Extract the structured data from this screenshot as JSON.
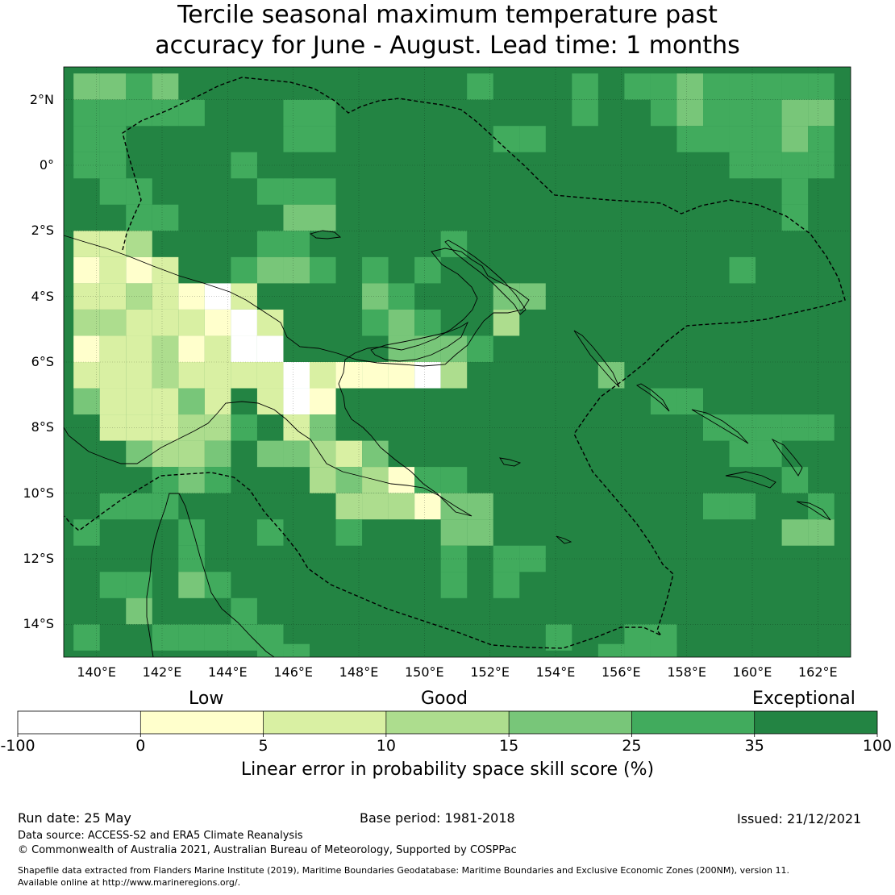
{
  "title_line1": "Tercile seasonal maximum temperature past",
  "title_line2": "accuracy for June - August. Lead time: 1 months",
  "map": {
    "lon_min": 139,
    "lon_max": 163,
    "lat_min": -15,
    "lat_max": 3,
    "lat_ticks": [
      "2°N",
      "0°",
      "2°S",
      "4°S",
      "6°S",
      "8°S",
      "10°S",
      "12°S",
      "14°S"
    ],
    "lon_ticks": [
      "140°E",
      "142°E",
      "144°E",
      "146°E",
      "148°E",
      "150°E",
      "152°E",
      "154°E",
      "156°E",
      "158°E",
      "160°E",
      "162°E"
    ],
    "grid_on": true,
    "background_category": 6,
    "skill_patches": [
      {
        "lon": 139.7,
        "lat": 2.4,
        "c": 4
      },
      {
        "lon": 140.5,
        "lat": 2.4,
        "c": 4
      },
      {
        "lon": 141.3,
        "lat": 2.4,
        "c": 5
      },
      {
        "lon": 142.1,
        "lat": 2.4,
        "c": 4
      },
      {
        "lon": 139.7,
        "lat": 1.6,
        "c": 5
      },
      {
        "lon": 140.5,
        "lat": 1.6,
        "c": 5
      },
      {
        "lon": 141.3,
        "lat": 1.6,
        "c": 5
      },
      {
        "lon": 142.1,
        "lat": 1.6,
        "c": 5
      },
      {
        "lon": 142.9,
        "lat": 1.6,
        "c": 5
      },
      {
        "lon": 139.7,
        "lat": 0.8,
        "c": 5
      },
      {
        "lon": 140.5,
        "lat": 0.8,
        "c": 5
      },
      {
        "lon": 139.7,
        "lat": 0.0,
        "c": 5
      },
      {
        "lon": 140.5,
        "lat": 0.0,
        "c": 5
      },
      {
        "lon": 140.5,
        "lat": -0.8,
        "c": 5
      },
      {
        "lon": 141.3,
        "lat": -0.8,
        "c": 5
      },
      {
        "lon": 141.3,
        "lat": -1.6,
        "c": 5
      },
      {
        "lon": 142.1,
        "lat": -1.6,
        "c": 5
      },
      {
        "lon": 144.5,
        "lat": 0.0,
        "c": 5
      },
      {
        "lon": 145.3,
        "lat": -0.8,
        "c": 5
      },
      {
        "lon": 146.1,
        "lat": -0.8,
        "c": 5
      },
      {
        "lon": 146.9,
        "lat": -0.8,
        "c": 5
      },
      {
        "lon": 146.1,
        "lat": 0.8,
        "c": 5
      },
      {
        "lon": 146.9,
        "lat": 0.8,
        "c": 5
      },
      {
        "lon": 146.9,
        "lat": 1.6,
        "c": 5
      },
      {
        "lon": 146.1,
        "lat": 1.6,
        "c": 5
      },
      {
        "lon": 146.1,
        "lat": -1.6,
        "c": 4
      },
      {
        "lon": 146.9,
        "lat": -1.6,
        "c": 4
      },
      {
        "lon": 146.1,
        "lat": -2.4,
        "c": 5
      },
      {
        "lon": 145.3,
        "lat": -2.4,
        "c": 5
      },
      {
        "lon": 144.5,
        "lat": -3.2,
        "c": 5
      },
      {
        "lon": 145.3,
        "lat": -3.2,
        "c": 4
      },
      {
        "lon": 146.1,
        "lat": -3.2,
        "c": 4
      },
      {
        "lon": 146.9,
        "lat": -3.2,
        "c": 5
      },
      {
        "lon": 148.5,
        "lat": -3.2,
        "c": 5
      },
      {
        "lon": 148.5,
        "lat": -4.0,
        "c": 4
      },
      {
        "lon": 149.3,
        "lat": -4.0,
        "c": 5
      },
      {
        "lon": 149.3,
        "lat": -4.8,
        "c": 4
      },
      {
        "lon": 150.1,
        "lat": -4.8,
        "c": 5
      },
      {
        "lon": 148.5,
        "lat": -4.8,
        "c": 5
      },
      {
        "lon": 149.3,
        "lat": -5.6,
        "c": 4
      },
      {
        "lon": 150.1,
        "lat": -5.6,
        "c": 4
      },
      {
        "lon": 150.9,
        "lat": -5.6,
        "c": 4
      },
      {
        "lon": 151.7,
        "lat": -5.6,
        "c": 5
      },
      {
        "lon": 152.5,
        "lat": -4.0,
        "c": 4
      },
      {
        "lon": 153.3,
        "lat": -4.0,
        "c": 4
      },
      {
        "lon": 152.5,
        "lat": -4.8,
        "c": 3
      },
      {
        "lon": 150.1,
        "lat": -3.2,
        "c": 5
      },
      {
        "lon": 150.9,
        "lat": -2.4,
        "c": 5
      },
      {
        "lon": 139.7,
        "lat": -2.4,
        "c": 2
      },
      {
        "lon": 140.5,
        "lat": -2.4,
        "c": 2
      },
      {
        "lon": 141.3,
        "lat": -2.4,
        "c": 3
      },
      {
        "lon": 139.7,
        "lat": -3.2,
        "c": 1
      },
      {
        "lon": 140.5,
        "lat": -3.2,
        "c": 2
      },
      {
        "lon": 141.3,
        "lat": -3.2,
        "c": 1
      },
      {
        "lon": 142.1,
        "lat": -3.2,
        "c": 2
      },
      {
        "lon": 139.7,
        "lat": -4.0,
        "c": 2
      },
      {
        "lon": 140.5,
        "lat": -4.0,
        "c": 2
      },
      {
        "lon": 141.3,
        "lat": -4.0,
        "c": 3
      },
      {
        "lon": 142.1,
        "lat": -4.0,
        "c": 2
      },
      {
        "lon": 142.9,
        "lat": -4.0,
        "c": 1
      },
      {
        "lon": 143.7,
        "lat": -4.0,
        "c": 0
      },
      {
        "lon": 144.5,
        "lat": -4.0,
        "c": 2
      },
      {
        "lon": 139.7,
        "lat": -4.8,
        "c": 3
      },
      {
        "lon": 140.5,
        "lat": -4.8,
        "c": 3
      },
      {
        "lon": 141.3,
        "lat": -4.8,
        "c": 2
      },
      {
        "lon": 142.1,
        "lat": -4.8,
        "c": 2
      },
      {
        "lon": 142.9,
        "lat": -4.8,
        "c": 2
      },
      {
        "lon": 143.7,
        "lat": -4.8,
        "c": 1
      },
      {
        "lon": 144.5,
        "lat": -4.8,
        "c": 0
      },
      {
        "lon": 145.3,
        "lat": -4.8,
        "c": 2
      },
      {
        "lon": 139.7,
        "lat": -5.6,
        "c": 1
      },
      {
        "lon": 140.5,
        "lat": -5.6,
        "c": 2
      },
      {
        "lon": 141.3,
        "lat": -5.6,
        "c": 2
      },
      {
        "lon": 142.1,
        "lat": -5.6,
        "c": 3
      },
      {
        "lon": 142.9,
        "lat": -5.6,
        "c": 1
      },
      {
        "lon": 143.7,
        "lat": -5.6,
        "c": 2
      },
      {
        "lon": 144.5,
        "lat": -5.6,
        "c": 0
      },
      {
        "lon": 145.3,
        "lat": -5.6,
        "c": 0
      },
      {
        "lon": 139.7,
        "lat": -6.4,
        "c": 2
      },
      {
        "lon": 140.5,
        "lat": -6.4,
        "c": 2
      },
      {
        "lon": 141.3,
        "lat": -6.4,
        "c": 2
      },
      {
        "lon": 142.1,
        "lat": -6.4,
        "c": 3
      },
      {
        "lon": 142.9,
        "lat": -6.4,
        "c": 2
      },
      {
        "lon": 143.7,
        "lat": -6.4,
        "c": 2
      },
      {
        "lon": 144.5,
        "lat": -6.4,
        "c": 2
      },
      {
        "lon": 145.3,
        "lat": -6.4,
        "c": 2
      },
      {
        "lon": 146.1,
        "lat": -6.4,
        "c": 0
      },
      {
        "lon": 146.9,
        "lat": -6.4,
        "c": 2
      },
      {
        "lon": 147.7,
        "lat": -6.4,
        "c": 1
      },
      {
        "lon": 148.5,
        "lat": -6.4,
        "c": 1
      },
      {
        "lon": 149.3,
        "lat": -6.4,
        "c": 1
      },
      {
        "lon": 150.1,
        "lat": -6.4,
        "c": 0
      },
      {
        "lon": 150.9,
        "lat": -6.4,
        "c": 3
      },
      {
        "lon": 139.7,
        "lat": -7.2,
        "c": 4
      },
      {
        "lon": 140.5,
        "lat": -7.2,
        "c": 2
      },
      {
        "lon": 141.3,
        "lat": -7.2,
        "c": 2
      },
      {
        "lon": 142.1,
        "lat": -7.2,
        "c": 2
      },
      {
        "lon": 142.9,
        "lat": -7.2,
        "c": 4
      },
      {
        "lon": 143.7,
        "lat": -7.2,
        "c": 2
      },
      {
        "lon": 145.3,
        "lat": -7.2,
        "c": 2
      },
      {
        "lon": 146.1,
        "lat": -7.2,
        "c": 0
      },
      {
        "lon": 146.9,
        "lat": -7.2,
        "c": 1
      },
      {
        "lon": 140.5,
        "lat": -8.0,
        "c": 2
      },
      {
        "lon": 141.3,
        "lat": -8.0,
        "c": 2
      },
      {
        "lon": 142.1,
        "lat": -8.0,
        "c": 2
      },
      {
        "lon": 142.9,
        "lat": -8.0,
        "c": 3
      },
      {
        "lon": 143.7,
        "lat": -8.0,
        "c": 3
      },
      {
        "lon": 144.5,
        "lat": -8.0,
        "c": 5
      },
      {
        "lon": 146.1,
        "lat": -8.0,
        "c": 2
      },
      {
        "lon": 146.9,
        "lat": -8.0,
        "c": 4
      },
      {
        "lon": 141.3,
        "lat": -8.8,
        "c": 4
      },
      {
        "lon": 142.1,
        "lat": -8.8,
        "c": 3
      },
      {
        "lon": 142.9,
        "lat": -8.8,
        "c": 3
      },
      {
        "lon": 143.7,
        "lat": -8.8,
        "c": 4
      },
      {
        "lon": 145.3,
        "lat": -8.8,
        "c": 4
      },
      {
        "lon": 146.1,
        "lat": -8.8,
        "c": 4
      },
      {
        "lon": 146.9,
        "lat": -8.8,
        "c": 3
      },
      {
        "lon": 147.7,
        "lat": -8.8,
        "c": 2
      },
      {
        "lon": 148.5,
        "lat": -8.8,
        "c": 4
      },
      {
        "lon": 142.1,
        "lat": -9.6,
        "c": 5
      },
      {
        "lon": 142.9,
        "lat": -9.6,
        "c": 4
      },
      {
        "lon": 143.7,
        "lat": -9.6,
        "c": 5
      },
      {
        "lon": 146.9,
        "lat": -9.6,
        "c": 3
      },
      {
        "lon": 147.7,
        "lat": -9.6,
        "c": 4
      },
      {
        "lon": 148.5,
        "lat": -9.6,
        "c": 3
      },
      {
        "lon": 149.3,
        "lat": -9.6,
        "c": 1
      },
      {
        "lon": 150.1,
        "lat": -9.6,
        "c": 5
      },
      {
        "lon": 150.9,
        "lat": -9.6,
        "c": 5
      },
      {
        "lon": 140.5,
        "lat": -10.4,
        "c": 5
      },
      {
        "lon": 141.3,
        "lat": -10.4,
        "c": 5
      },
      {
        "lon": 142.1,
        "lat": -10.4,
        "c": 5
      },
      {
        "lon": 147.7,
        "lat": -10.4,
        "c": 3
      },
      {
        "lon": 148.5,
        "lat": -10.4,
        "c": 3
      },
      {
        "lon": 149.3,
        "lat": -10.4,
        "c": 3
      },
      {
        "lon": 150.1,
        "lat": -10.4,
        "c": 1
      },
      {
        "lon": 150.9,
        "lat": -10.4,
        "c": 4
      },
      {
        "lon": 151.7,
        "lat": -10.4,
        "c": 4
      },
      {
        "lon": 139.7,
        "lat": -11.2,
        "c": 5
      },
      {
        "lon": 142.9,
        "lat": -11.2,
        "c": 5
      },
      {
        "lon": 145.3,
        "lat": -11.2,
        "c": 5
      },
      {
        "lon": 147.7,
        "lat": -11.2,
        "c": 5
      },
      {
        "lon": 150.9,
        "lat": -11.2,
        "c": 4
      },
      {
        "lon": 151.7,
        "lat": -11.2,
        "c": 4
      },
      {
        "lon": 142.9,
        "lat": -12.0,
        "c": 5
      },
      {
        "lon": 150.9,
        "lat": -12.0,
        "c": 5
      },
      {
        "lon": 152.5,
        "lat": -12.0,
        "c": 5
      },
      {
        "lon": 153.3,
        "lat": -12.0,
        "c": 5
      },
      {
        "lon": 140.5,
        "lat": -12.8,
        "c": 5
      },
      {
        "lon": 141.3,
        "lat": -12.8,
        "c": 5
      },
      {
        "lon": 142.9,
        "lat": -12.8,
        "c": 4
      },
      {
        "lon": 143.7,
        "lat": -12.8,
        "c": 5
      },
      {
        "lon": 150.9,
        "lat": -12.8,
        "c": 5
      },
      {
        "lon": 152.5,
        "lat": -12.8,
        "c": 5
      },
      {
        "lon": 141.3,
        "lat": -13.6,
        "c": 4
      },
      {
        "lon": 144.5,
        "lat": -13.6,
        "c": 5
      },
      {
        "lon": 139.7,
        "lat": -14.4,
        "c": 5
      },
      {
        "lon": 142.1,
        "lat": -14.4,
        "c": 5
      },
      {
        "lon": 142.9,
        "lat": -14.4,
        "c": 5
      },
      {
        "lon": 143.7,
        "lat": -14.4,
        "c": 5
      },
      {
        "lon": 144.5,
        "lat": -14.4,
        "c": 5
      },
      {
        "lon": 145.3,
        "lat": -14.4,
        "c": 5
      },
      {
        "lon": 154.1,
        "lat": -14.4,
        "c": 5
      },
      {
        "lon": 156.5,
        "lat": -14.4,
        "c": 5
      },
      {
        "lon": 157.3,
        "lat": -14.4,
        "c": 5
      },
      {
        "lon": 145.3,
        "lat": -15.0,
        "c": 5
      },
      {
        "lon": 146.1,
        "lat": -15.0,
        "c": 5
      },
      {
        "lon": 155.7,
        "lat": -15.0,
        "c": 5
      },
      {
        "lon": 156.5,
        "lat": -15.0,
        "c": 5
      },
      {
        "lon": 157.3,
        "lat": -15.0,
        "c": 5
      },
      {
        "lon": 155.7,
        "lat": -6.4,
        "c": 4
      },
      {
        "lon": 157.3,
        "lat": -7.2,
        "c": 5
      },
      {
        "lon": 158.1,
        "lat": -7.2,
        "c": 5
      },
      {
        "lon": 158.9,
        "lat": -8.0,
        "c": 5
      },
      {
        "lon": 159.7,
        "lat": -8.0,
        "c": 5
      },
      {
        "lon": 160.5,
        "lat": -8.0,
        "c": 5
      },
      {
        "lon": 161.3,
        "lat": -8.0,
        "c": 5
      },
      {
        "lon": 162.1,
        "lat": -8.0,
        "c": 5
      },
      {
        "lon": 159.7,
        "lat": -8.8,
        "c": 5
      },
      {
        "lon": 160.5,
        "lat": -8.8,
        "c": 5
      },
      {
        "lon": 161.3,
        "lat": -9.6,
        "c": 5
      },
      {
        "lon": 158.9,
        "lat": -10.4,
        "c": 5
      },
      {
        "lon": 159.7,
        "lat": -10.4,
        "c": 5
      },
      {
        "lon": 162.1,
        "lat": -10.4,
        "c": 5
      },
      {
        "lon": 161.3,
        "lat": -11.2,
        "c": 4
      },
      {
        "lon": 162.1,
        "lat": -11.2,
        "c": 4
      },
      {
        "lon": 159.7,
        "lat": -3.2,
        "c": 5
      },
      {
        "lon": 151.7,
        "lat": 2.4,
        "c": 5
      },
      {
        "lon": 154.9,
        "lat": 1.6,
        "c": 5
      },
      {
        "lon": 154.9,
        "lat": 2.4,
        "c": 5
      },
      {
        "lon": 156.5,
        "lat": 2.4,
        "c": 5
      },
      {
        "lon": 157.3,
        "lat": 2.4,
        "c": 5
      },
      {
        "lon": 158.1,
        "lat": 2.4,
        "c": 4
      },
      {
        "lon": 158.9,
        "lat": 2.4,
        "c": 5
      },
      {
        "lon": 159.7,
        "lat": 2.4,
        "c": 5
      },
      {
        "lon": 160.5,
        "lat": 2.4,
        "c": 5
      },
      {
        "lon": 161.3,
        "lat": 2.4,
        "c": 5
      },
      {
        "lon": 162.1,
        "lat": 2.4,
        "c": 5
      },
      {
        "lon": 157.3,
        "lat": 1.6,
        "c": 5
      },
      {
        "lon": 158.1,
        "lat": 1.6,
        "c": 4
      },
      {
        "lon": 158.9,
        "lat": 1.6,
        "c": 5
      },
      {
        "lon": 159.7,
        "lat": 1.6,
        "c": 5
      },
      {
        "lon": 160.5,
        "lat": 1.6,
        "c": 5
      },
      {
        "lon": 161.3,
        "lat": 1.6,
        "c": 4
      },
      {
        "lon": 162.1,
        "lat": 1.6,
        "c": 4
      },
      {
        "lon": 158.1,
        "lat": 0.8,
        "c": 5
      },
      {
        "lon": 158.9,
        "lat": 0.8,
        "c": 5
      },
      {
        "lon": 159.7,
        "lat": 0.8,
        "c": 5
      },
      {
        "lon": 160.5,
        "lat": 0.8,
        "c": 5
      },
      {
        "lon": 161.3,
        "lat": 0.8,
        "c": 4
      },
      {
        "lon": 162.1,
        "lat": 0.8,
        "c": 5
      },
      {
        "lon": 152.5,
        "lat": 0.8,
        "c": 5
      },
      {
        "lon": 153.3,
        "lat": 0.8,
        "c": 5
      },
      {
        "lon": 159.7,
        "lat": 0.0,
        "c": 5
      },
      {
        "lon": 160.5,
        "lat": 0.0,
        "c": 5
      },
      {
        "lon": 161.3,
        "lat": 0.0,
        "c": 5
      },
      {
        "lon": 162.1,
        "lat": 0.0,
        "c": 5
      },
      {
        "lon": 161.3,
        "lat": -0.8,
        "c": 5
      },
      {
        "lon": 161.3,
        "lat": -1.6,
        "c": 5
      }
    ]
  },
  "colorbar": {
    "category_labels": [
      "Low",
      "Good",
      "Exceptional"
    ],
    "bounds": [
      -100,
      0,
      5,
      10,
      15,
      25,
      35,
      100
    ],
    "tick_labels": [
      "-100",
      "0",
      "5",
      "10",
      "15",
      "25",
      "35",
      "100"
    ],
    "colors": [
      "#ffffff",
      "#ffffcc",
      "#d9f0a3",
      "#addd8e",
      "#78c679",
      "#41ab5d",
      "#238443"
    ],
    "title": "Linear error in probability space skill score (%)"
  },
  "footer": {
    "run_date": "Run date: 25 May",
    "base_period": "Base period: 1981-2018",
    "issued": "Issued: 21/12/2021",
    "data_source": "Data source: ACCESS-S2 and ERA5 Climate Reanalysis",
    "copyright": "© Commonwealth of Australia 2021, Australian Bureau of Meteorology, Supported by COSPPac",
    "shapefile_line1": "Shapefile data extracted from Flanders Marine Institute (2019), Maritime Boundaries Geodatabase: Maritime Boundaries and Exclusive Economic Zones (200NM), version 11.",
    "shapefile_line2": "Available online at http://www.marineregions.org/."
  }
}
